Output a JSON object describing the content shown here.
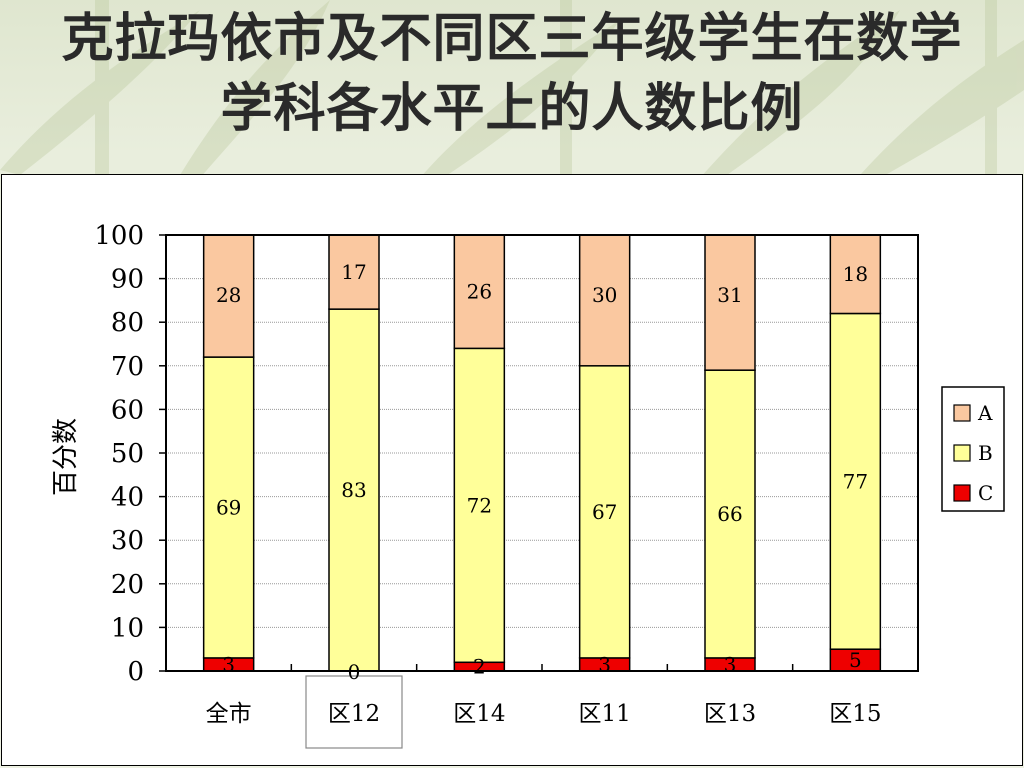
{
  "slide": {
    "title_line1": "克拉玛依市及不同区三年级学生在数学",
    "title_line2": "学科各水平上的人数比例"
  },
  "colors": {
    "A": "#fac8a0",
    "B": "#ffff99",
    "C": "#ee0000",
    "background": "#e9eedd"
  },
  "chart_data": {
    "type": "bar",
    "stacked": true,
    "title": "",
    "xlabel": "",
    "ylabel": "百分数",
    "ylim": [
      0,
      100
    ],
    "yticks": [
      0,
      10,
      20,
      30,
      40,
      50,
      60,
      70,
      80,
      90,
      100
    ],
    "grid": true,
    "legend_position": "right",
    "categories": [
      "全市",
      "区12",
      "区14",
      "区11",
      "区13",
      "区15"
    ],
    "highlighted_category": "区12",
    "series": [
      {
        "name": "C",
        "values": [
          3,
          0,
          2,
          3,
          3,
          5
        ]
      },
      {
        "name": "B",
        "values": [
          69,
          83,
          72,
          67,
          66,
          77
        ]
      },
      {
        "name": "A",
        "values": [
          28,
          17,
          26,
          30,
          31,
          18
        ]
      }
    ],
    "legend_order": [
      "A",
      "B",
      "C"
    ]
  }
}
